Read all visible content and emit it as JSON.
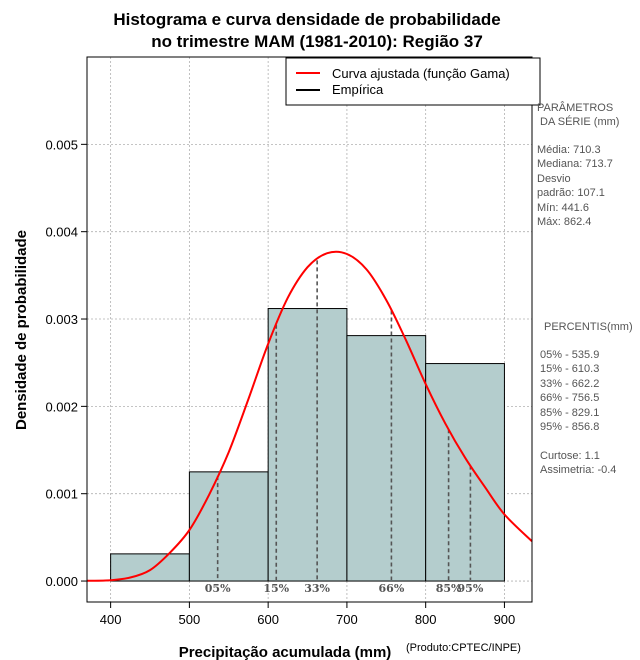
{
  "chart_data": {
    "type": "bar",
    "title_line1": "Histograma e curva densidade de probabilidade",
    "title_line2": "no trimestre MAM (1981-2010): Região 37",
    "xlabel": "Precipitação acumulada (mm)",
    "ylabel": "Densidade de probabilidade",
    "credit": "(Produto:CPTEC/INPE)",
    "xlim": [
      370,
      935
    ],
    "ylim": [
      -0.00024,
      0.006
    ],
    "x_ticks": [
      400,
      500,
      600,
      700,
      800,
      900
    ],
    "x_tick_labels": [
      "400",
      "500",
      "600",
      "700",
      "800",
      "900"
    ],
    "y_ticks": [
      0,
      0.001,
      0.002,
      0.003,
      0.004,
      0.005
    ],
    "y_tick_labels": [
      "0.000",
      "0.001",
      "0.002",
      "0.003",
      "0.004",
      "0.005"
    ],
    "grid": true,
    "bins": [
      {
        "x0": 400,
        "x1": 500,
        "density": 0.000311
      },
      {
        "x0": 500,
        "x1": 600,
        "density": 0.00125
      },
      {
        "x0": 600,
        "x1": 700,
        "density": 0.00312
      },
      {
        "x0": 700,
        "x1": 800,
        "density": 0.00281
      },
      {
        "x0": 800,
        "x1": 900,
        "density": 0.00249
      }
    ],
    "curve": {
      "name": "Curva ajustada (função Gama)",
      "x": [
        370,
        400,
        425,
        450,
        475,
        500,
        525,
        550,
        575,
        600,
        625,
        650,
        675,
        700,
        725,
        750,
        775,
        800,
        825,
        850,
        875,
        900,
        935
      ],
      "y": [
        2.6e-06,
        9.8e-06,
        4.01e-05,
        0.000125,
        0.000322,
        0.000584,
        0.000987,
        0.001478,
        0.002085,
        0.002717,
        0.003244,
        0.003593,
        0.003754,
        0.003745,
        0.003567,
        0.003217,
        0.002758,
        0.002255,
        0.001802,
        0.001412,
        0.00108,
        0.000763,
        0.000455
      ]
    },
    "empirical": {
      "name": "Empírica"
    },
    "percentile_lines": [
      {
        "label": "05%",
        "x": 535.9
      },
      {
        "label": "15%",
        "x": 610.3
      },
      {
        "label": "33%",
        "x": 662.2
      },
      {
        "label": "66%",
        "x": 756.5
      },
      {
        "label": "85%",
        "x": 829.1
      },
      {
        "label": "95%",
        "x": 856.8
      }
    ],
    "legend_position": "top-right",
    "colors": {
      "bars": "#b4cdcd",
      "curve": "#ff0000",
      "grid": "#b0b0b0",
      "percentile_line": "#555555"
    }
  },
  "side_panel": {
    "params_heading_1": "PARÂMETROS",
    "params_heading_2": "DA SÉRIE (mm)",
    "media": "Média:  710.3",
    "mediana": "Mediana:  713.7",
    "desvio_1": "Desvio",
    "desvio_2": "padrão:  107.1",
    "min": "Mín:  441.6",
    "max": "Máx:  862.4",
    "percentis_heading": "PERCENTIS(mm)",
    "p05": "05% -   535.9",
    "p15": "15% -   610.3",
    "p33": "33% -   662.2",
    "p66": "66% -   756.5",
    "p85": "85% -   829.1",
    "p95": "95% -   856.8",
    "curtose": "Curtose:  1.1",
    "assimetria": "Assimetria:  -0.4"
  }
}
